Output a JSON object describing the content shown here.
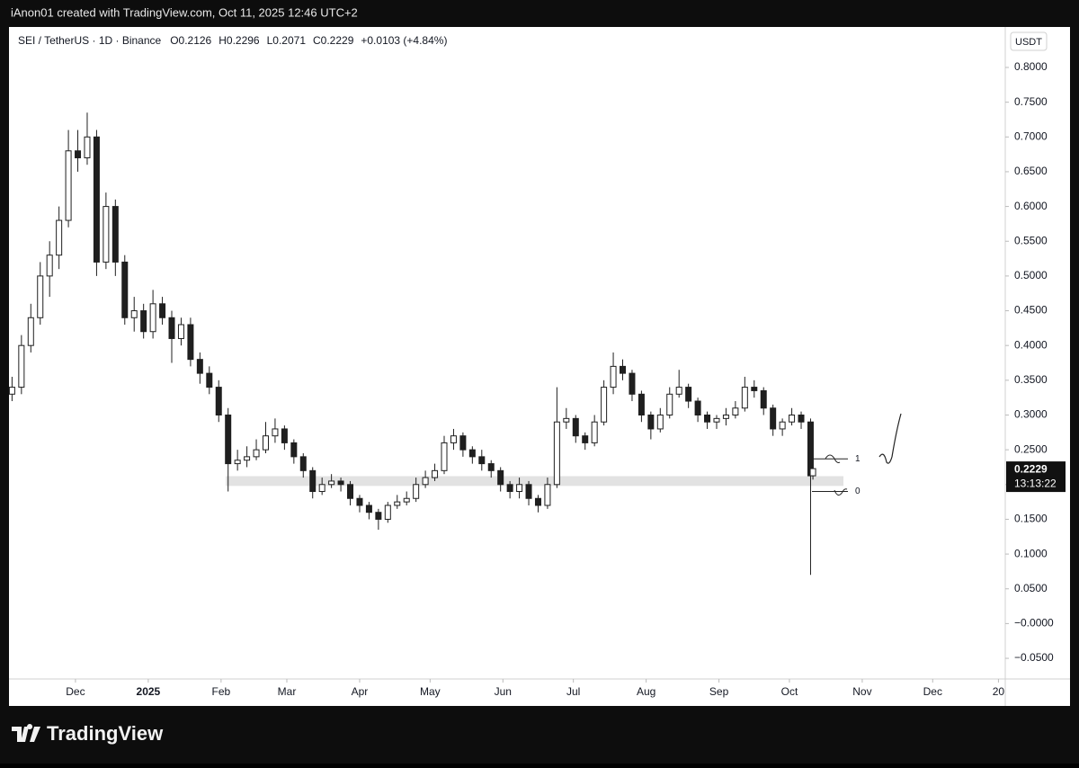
{
  "header": {
    "text": "iAnon01 created with TradingView.com, Oct 11, 2025 12:46 UTC+2"
  },
  "footer": {
    "logo_text": "TradingView"
  },
  "chart_data": {
    "type": "candlestick",
    "symbol": "SEI / TetherUS · 1D · Binance",
    "ohlc_labels": [
      "O",
      "H",
      "L",
      "C"
    ],
    "change": "+0.0103 (+4.84%)",
    "currency": "USDT",
    "countdown": "13:13:22",
    "color": "#1f1f1f",
    "x": [
      -27,
      -23,
      -19,
      -15,
      -11,
      -7,
      -3,
      1,
      5,
      9,
      13,
      17,
      21,
      25,
      29,
      33,
      37,
      41,
      45,
      49,
      53,
      57,
      61,
      65,
      69,
      73,
      77,
      81,
      85,
      89,
      93,
      97,
      101,
      105,
      109,
      113,
      117,
      121,
      125,
      129,
      133,
      137,
      141,
      145,
      149,
      153,
      157,
      161,
      165,
      169,
      173,
      177,
      181,
      185,
      189,
      193,
      197,
      201,
      205,
      209,
      213,
      217,
      221,
      225,
      229,
      233,
      237,
      241,
      245,
      249,
      253,
      257,
      261,
      265,
      269,
      273,
      277,
      281,
      285,
      289,
      293,
      297,
      301,
      305,
      309,
      313,
      314
    ],
    "open": [
      0.33,
      0.34,
      0.4,
      0.44,
      0.5,
      0.53,
      0.58,
      0.68,
      0.67,
      0.7,
      0.52,
      0.6,
      0.52,
      0.44,
      0.45,
      0.42,
      0.46,
      0.44,
      0.41,
      0.43,
      0.38,
      0.36,
      0.34,
      0.3,
      0.23,
      0.235,
      0.24,
      0.25,
      0.27,
      0.28,
      0.26,
      0.24,
      0.22,
      0.19,
      0.2,
      0.205,
      0.2,
      0.18,
      0.17,
      0.16,
      0.15,
      0.17,
      0.175,
      0.18,
      0.2,
      0.21,
      0.22,
      0.26,
      0.27,
      0.25,
      0.24,
      0.23,
      0.22,
      0.2,
      0.19,
      0.2,
      0.18,
      0.17,
      0.2,
      0.29,
      0.295,
      0.27,
      0.26,
      0.29,
      0.34,
      0.37,
      0.36,
      0.33,
      0.3,
      0.28,
      0.3,
      0.33,
      0.34,
      0.32,
      0.3,
      0.29,
      0.295,
      0.3,
      0.31,
      0.34,
      0.335,
      0.31,
      0.28,
      0.29,
      0.3,
      0.29,
      0.2126
    ],
    "high": [
      0.355,
      0.415,
      0.46,
      0.52,
      0.55,
      0.6,
      0.71,
      0.71,
      0.735,
      0.71,
      0.62,
      0.61,
      0.53,
      0.47,
      0.46,
      0.48,
      0.47,
      0.45,
      0.44,
      0.44,
      0.39,
      0.37,
      0.35,
      0.31,
      0.25,
      0.255,
      0.265,
      0.29,
      0.295,
      0.285,
      0.265,
      0.245,
      0.225,
      0.21,
      0.215,
      0.21,
      0.205,
      0.185,
      0.175,
      0.165,
      0.175,
      0.185,
      0.19,
      0.21,
      0.22,
      0.23,
      0.27,
      0.28,
      0.275,
      0.255,
      0.25,
      0.235,
      0.225,
      0.205,
      0.21,
      0.205,
      0.185,
      0.21,
      0.34,
      0.31,
      0.3,
      0.275,
      0.3,
      0.35,
      0.39,
      0.38,
      0.365,
      0.335,
      0.305,
      0.31,
      0.34,
      0.365,
      0.345,
      0.325,
      0.305,
      0.3,
      0.31,
      0.32,
      0.355,
      0.35,
      0.34,
      0.315,
      0.295,
      0.31,
      0.305,
      0.295,
      0.2296
    ],
    "low": [
      0.32,
      0.33,
      0.39,
      0.43,
      0.47,
      0.51,
      0.57,
      0.65,
      0.66,
      0.5,
      0.51,
      0.5,
      0.43,
      0.42,
      0.41,
      0.41,
      0.43,
      0.375,
      0.4,
      0.37,
      0.345,
      0.33,
      0.29,
      0.19,
      0.22,
      0.225,
      0.235,
      0.245,
      0.26,
      0.25,
      0.23,
      0.21,
      0.18,
      0.185,
      0.195,
      0.19,
      0.17,
      0.16,
      0.15,
      0.135,
      0.145,
      0.165,
      0.17,
      0.175,
      0.195,
      0.205,
      0.215,
      0.25,
      0.24,
      0.23,
      0.22,
      0.21,
      0.19,
      0.18,
      0.18,
      0.17,
      0.16,
      0.165,
      0.195,
      0.28,
      0.26,
      0.25,
      0.255,
      0.285,
      0.33,
      0.35,
      0.32,
      0.29,
      0.265,
      0.275,
      0.295,
      0.325,
      0.31,
      0.29,
      0.28,
      0.28,
      0.285,
      0.295,
      0.305,
      0.325,
      0.3,
      0.27,
      0.27,
      0.285,
      0.28,
      0.07,
      0.2071
    ],
    "close": [
      0.34,
      0.4,
      0.44,
      0.5,
      0.53,
      0.58,
      0.68,
      0.67,
      0.7,
      0.52,
      0.6,
      0.52,
      0.44,
      0.45,
      0.42,
      0.46,
      0.44,
      0.41,
      0.43,
      0.38,
      0.36,
      0.34,
      0.3,
      0.23,
      0.235,
      0.24,
      0.25,
      0.27,
      0.28,
      0.26,
      0.24,
      0.22,
      0.19,
      0.2,
      0.205,
      0.2,
      0.18,
      0.17,
      0.16,
      0.15,
      0.17,
      0.175,
      0.18,
      0.2,
      0.21,
      0.22,
      0.26,
      0.27,
      0.25,
      0.24,
      0.23,
      0.22,
      0.2,
      0.19,
      0.2,
      0.18,
      0.17,
      0.2,
      0.29,
      0.295,
      0.27,
      0.26,
      0.29,
      0.34,
      0.37,
      0.36,
      0.33,
      0.3,
      0.28,
      0.3,
      0.33,
      0.34,
      0.32,
      0.3,
      0.29,
      0.295,
      0.3,
      0.31,
      0.34,
      0.335,
      0.31,
      0.28,
      0.29,
      0.3,
      0.29,
      0.2126,
      0.2229
    ],
    "xlim": [
      -28.3,
      395.9
    ],
    "ylim": [
      -0.0797,
      0.8582
    ],
    "xticks": [
      {
        "value": 0,
        "label": "Dec"
      },
      {
        "value": 31,
        "label": "2025"
      },
      {
        "value": 62,
        "label": "Feb"
      },
      {
        "value": 90,
        "label": "Mar"
      },
      {
        "value": 121,
        "label": "Apr"
      },
      {
        "value": 151,
        "label": "May"
      },
      {
        "value": 182,
        "label": "Jun"
      },
      {
        "value": 212,
        "label": "Jul"
      },
      {
        "value": 243,
        "label": "Aug"
      },
      {
        "value": 274,
        "label": "Sep"
      },
      {
        "value": 304,
        "label": "Oct"
      },
      {
        "value": 335,
        "label": "Nov"
      },
      {
        "value": 365,
        "label": "Dec"
      },
      {
        "value": 393,
        "label": "20"
      }
    ],
    "yticks": [
      {
        "value": 0.8,
        "label": "0.8000"
      },
      {
        "value": 0.75,
        "label": "0.7500"
      },
      {
        "value": 0.7,
        "label": "0.7000"
      },
      {
        "value": 0.65,
        "label": "0.6500"
      },
      {
        "value": 0.6,
        "label": "0.6000"
      },
      {
        "value": 0.55,
        "label": "0.5500"
      },
      {
        "value": 0.5,
        "label": "0.5000"
      },
      {
        "value": 0.45,
        "label": "0.4500"
      },
      {
        "value": 0.4,
        "label": "0.4000"
      },
      {
        "value": 0.35,
        "label": "0.3500"
      },
      {
        "value": 0.3,
        "label": "0.3000"
      },
      {
        "value": 0.25,
        "label": "0.2500"
      },
      {
        "value": 0.2,
        "label": "0.2000"
      },
      {
        "value": 0.15,
        "label": "0.1500"
      },
      {
        "value": 0.1,
        "label": "0.1000"
      },
      {
        "value": 0.05,
        "label": "0.0500"
      },
      {
        "value": 0,
        "label": "−0.0000"
      },
      {
        "value": -0.05,
        "label": "−0.0500"
      }
    ],
    "zone": {
      "x": [
        64,
        327
      ],
      "y": [
        0.198,
        0.212
      ]
    },
    "fib_levels": [
      {
        "value": 0.237,
        "label": "1"
      },
      {
        "value": 0.19,
        "label": "0"
      }
    ]
  }
}
